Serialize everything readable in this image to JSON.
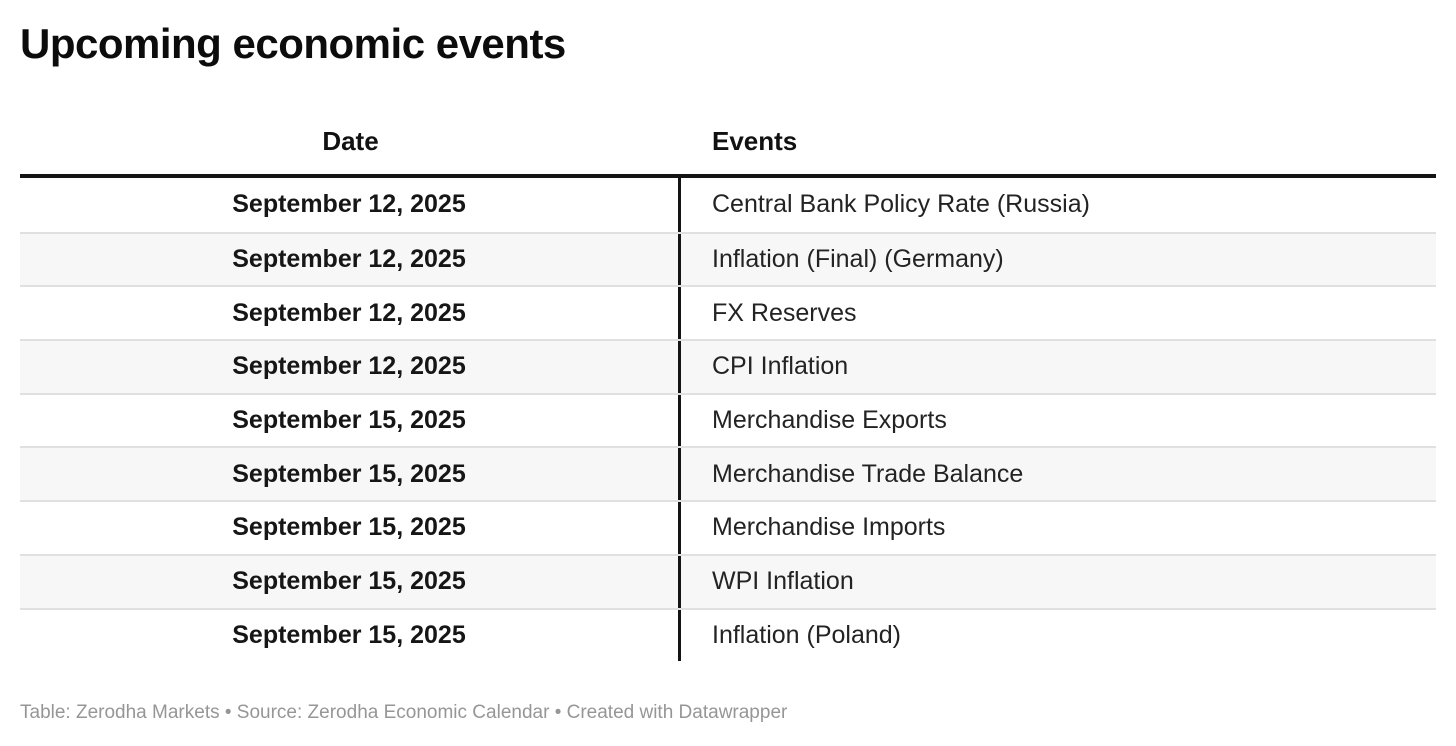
{
  "chart_data": {
    "type": "table",
    "title": "Upcoming economic events",
    "columns": [
      "Date",
      "Events"
    ],
    "rows": [
      [
        "September 12, 2025",
        "Central Bank Policy Rate (Russia)"
      ],
      [
        "September 12, 2025",
        "Inflation (Final) (Germany)"
      ],
      [
        "September 12, 2025",
        "FX Reserves"
      ],
      [
        "September 12, 2025",
        "CPI Inflation"
      ],
      [
        "September 15, 2025",
        "Merchandise Exports"
      ],
      [
        "September 15, 2025",
        "Merchandise Trade Balance"
      ],
      [
        "September 15, 2025",
        "Merchandise Imports"
      ],
      [
        "September 15, 2025",
        "WPI Inflation"
      ],
      [
        "September 15, 2025",
        "Inflation (Poland)"
      ]
    ],
    "footer": "Table: Zerodha Markets • Source: Zerodha Economic Calendar • Created with Datawrapper",
    "layout_hints": {
      "date_column_align": "center",
      "events_column_align": "left",
      "striped_rows": true
    }
  },
  "colors": {
    "title_text": "#0c0c0c",
    "cell_text": "#161616",
    "event_text": "#232323",
    "stripe": "#f7f7f7",
    "row_divider": "#e0e0e0",
    "table_border": "#141414",
    "footer_text": "#969696",
    "background": "#ffffff"
  }
}
